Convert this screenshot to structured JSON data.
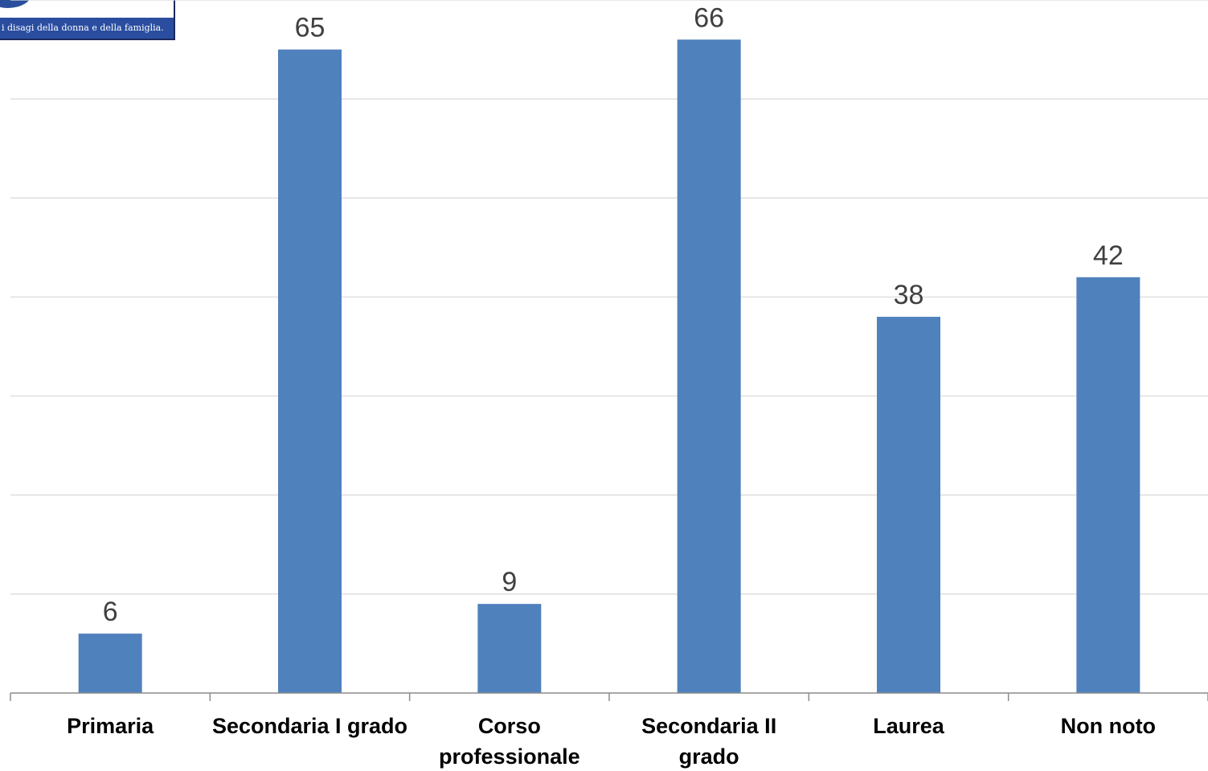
{
  "logo": {
    "tagline": "i disagi della donna e della famiglia.",
    "brand_color": "#2a4da0"
  },
  "chart_data": {
    "type": "bar",
    "categories": [
      [
        "Primaria"
      ],
      [
        "Secondaria I grado"
      ],
      [
        "Corso",
        "professionale"
      ],
      [
        "Secondaria II",
        "grado"
      ],
      [
        "Laurea"
      ],
      [
        "Non noto"
      ]
    ],
    "values": [
      6,
      65,
      9,
      66,
      38,
      42
    ],
    "title": "",
    "xlabel": "",
    "ylabel": "",
    "ylim": [
      0,
      70
    ],
    "grid": true,
    "bar_color": "#4f81bd",
    "legend": "none"
  }
}
